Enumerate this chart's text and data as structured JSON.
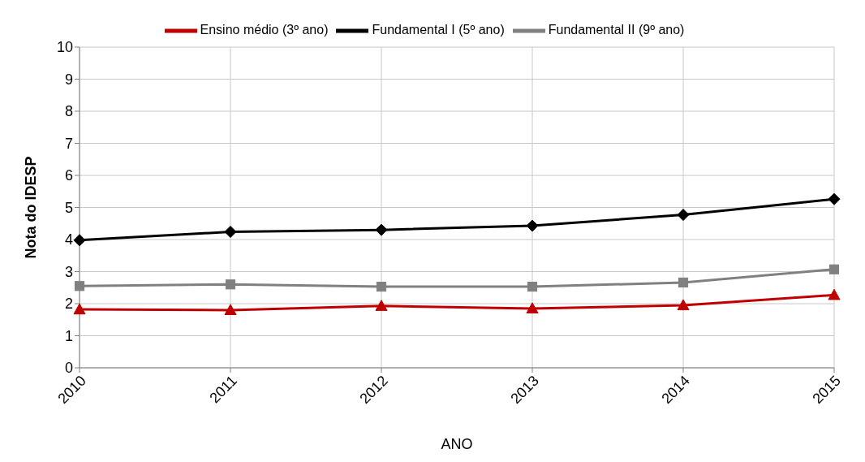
{
  "chart_data": {
    "type": "line",
    "xlabel": "ANO",
    "ylabel": "Nota do IDESP",
    "categories": [
      "2010",
      "2011",
      "2012",
      "2013",
      "2014",
      "2015"
    ],
    "series": [
      {
        "name": "Fundamental I (5º ano)",
        "color": "#000000",
        "marker": "diamond",
        "values": [
          3.98,
          4.24,
          4.3,
          4.43,
          4.77,
          5.26
        ]
      },
      {
        "name": "Fundamental II (9º ano)",
        "color": "#808080",
        "marker": "square",
        "values": [
          2.55,
          2.6,
          2.53,
          2.53,
          2.66,
          3.07
        ]
      },
      {
        "name": "Ensino médio (3º ano)",
        "color": "#c00000",
        "marker": "triangle",
        "values": [
          1.82,
          1.8,
          1.93,
          1.85,
          1.95,
          2.27
        ]
      }
    ],
    "ylim": [
      0,
      10
    ],
    "yticks": [
      0,
      1,
      2,
      3,
      4,
      5,
      6,
      7,
      8,
      9,
      10
    ],
    "grid": true,
    "legend": "top"
  }
}
